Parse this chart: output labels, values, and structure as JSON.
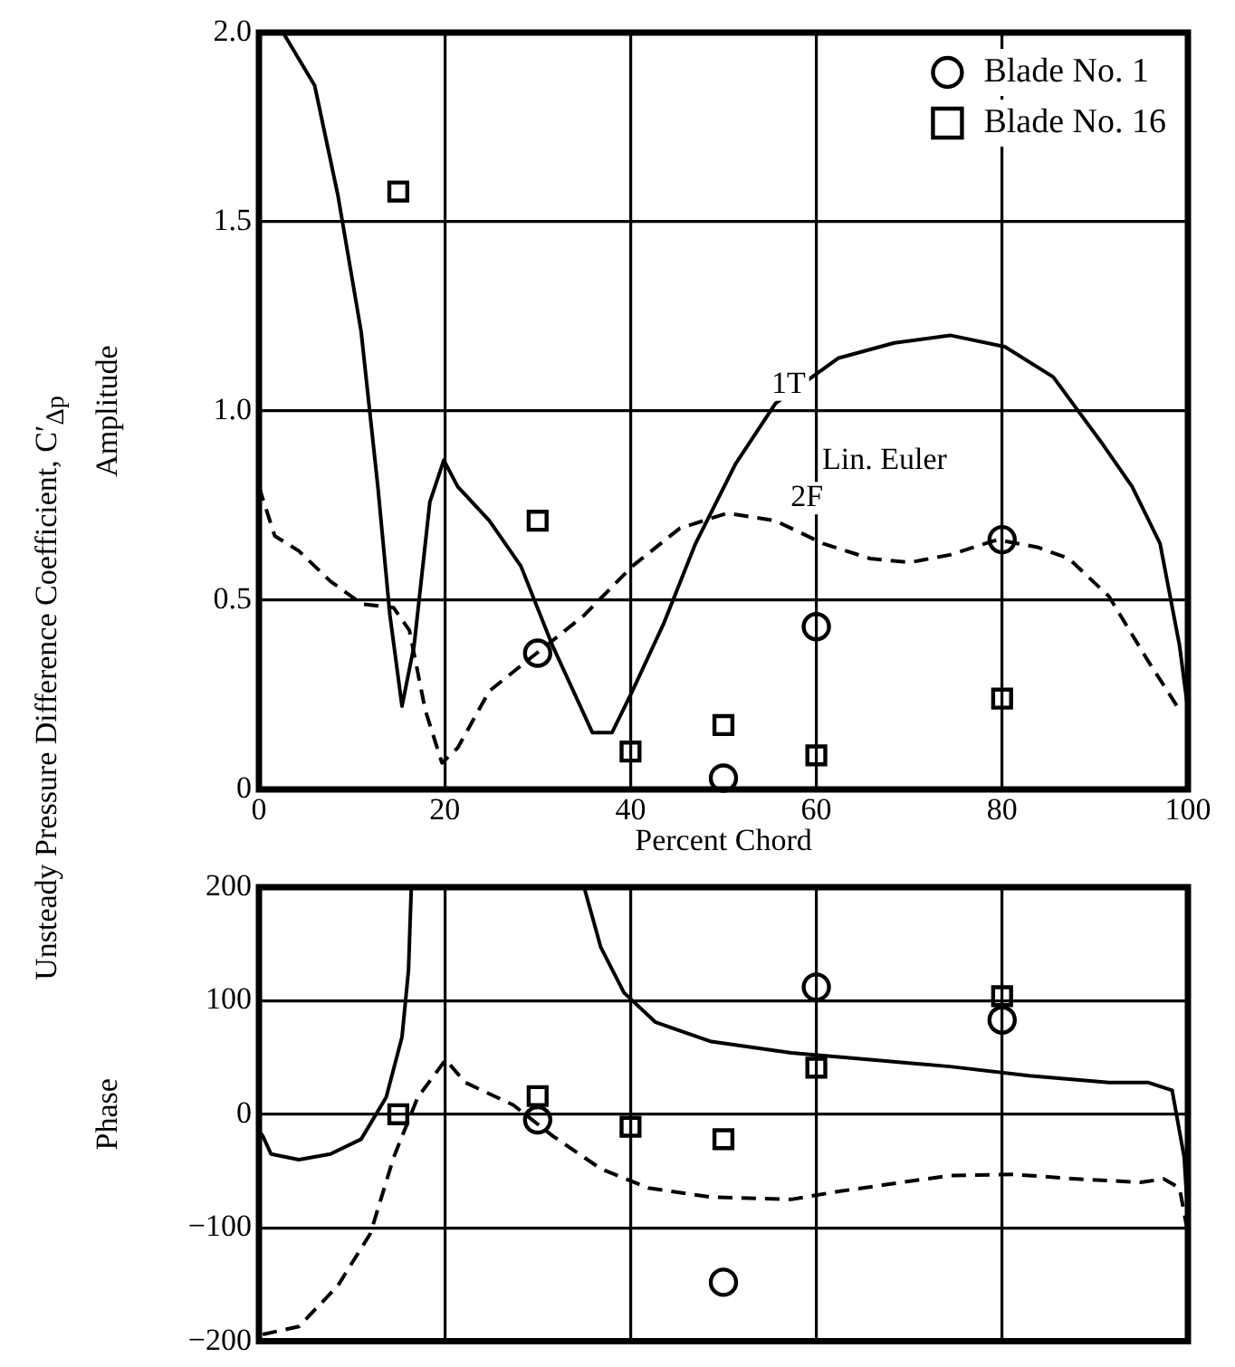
{
  "chart_data": [
    {
      "type": "line",
      "ylabel": "Amplitude",
      "xlabel": "Percent Chord",
      "xlim": [
        0,
        100
      ],
      "xticks": [
        0,
        20,
        40,
        60,
        80,
        100
      ],
      "ylim": [
        0,
        2
      ],
      "yticks": [
        0,
        {
          "value": 0.5,
          "label": "0.5"
        },
        {
          "value": 1,
          "label": "1.0"
        },
        {
          "value": 1.5,
          "label": "1.5"
        },
        {
          "value": 2,
          "label": "2.0"
        }
      ],
      "grid": true,
      "legend": "top right",
      "annotations": [
        "Unsteady Pressure Difference Coefficient, C′$_{Δp}$",
        {
          "text": "1T",
          "x": 57,
          "y": 1.07
        },
        "Lin. Euler",
        {
          "text": "2F",
          "x": 59,
          "y": 0.77
        }
      ],
      "series": [
        {
          "color": "#000000",
          "line_style": "solid",
          "marker": "none",
          "x": [
            2.6,
            6,
            8.5,
            11,
            12.8,
            14.1,
            15.4,
            16.7,
            18.4,
            19.9,
            21.4,
            24.8,
            28.2,
            31.6,
            35.9,
            38,
            40.2,
            43.6,
            47,
            51.3,
            55.6,
            62.4,
            68.4,
            74.4,
            80.3,
            85.5,
            90.6,
            94,
            97,
            99.1,
            100
          ],
          "values": [
            2.0,
            1.86,
            1.57,
            1.21,
            0.8,
            0.46,
            0.22,
            0.38,
            0.76,
            0.87,
            0.8,
            0.71,
            0.59,
            0.38,
            0.15,
            0.15,
            0.26,
            0.44,
            0.65,
            0.86,
            1.02,
            1.14,
            1.18,
            1.2,
            1.17,
            1.09,
            0.92,
            0.8,
            0.65,
            0.38,
            0.21
          ]
        },
        {
          "color": "#000000",
          "line_style": "dashed",
          "marker": "none",
          "x": [
            0,
            1.7,
            4.3,
            7.7,
            11.1,
            14.5,
            16.2,
            17.9,
            19.7,
            21.4,
            24.8,
            29.9,
            35,
            40.2,
            45.3,
            50.4,
            55.6,
            60.7,
            65.8,
            70.1,
            74.4,
            79.5,
            83.8,
            87.2,
            91.5,
            95.7,
            99.1
          ],
          "values": [
            0.8,
            0.67,
            0.63,
            0.55,
            0.49,
            0.48,
            0.42,
            0.21,
            0.07,
            0.11,
            0.26,
            0.36,
            0.46,
            0.59,
            0.69,
            0.73,
            0.71,
            0.65,
            0.61,
            0.6,
            0.62,
            0.66,
            0.64,
            0.61,
            0.51,
            0.34,
            0.21
          ]
        },
        {
          "type": "scatter",
          "name": "Blade No. 1",
          "color": "#000000",
          "marker": "circle",
          "x": [
            30,
            50,
            60,
            80
          ],
          "values": [
            0.36,
            0.03,
            0.43,
            0.66
          ]
        },
        {
          "type": "scatter",
          "name": "Blade No. 16",
          "color": "#000000",
          "marker": "square",
          "x": [
            15,
            30,
            40,
            50,
            60,
            80
          ],
          "values": [
            1.58,
            0.71,
            0.1,
            0.17,
            0.09,
            0.24
          ]
        }
      ]
    },
    {
      "type": "line",
      "ylabel": "Phase",
      "xlim": [
        0,
        100
      ],
      "xticks": [
        0,
        20,
        40,
        60,
        80,
        100
      ],
      "ylim": [
        -200,
        200
      ],
      "yticks": [
        {
          "value": -200,
          "label": "−200"
        },
        {
          "value": -100,
          "label": "−100"
        },
        0,
        100,
        200
      ],
      "grid": true,
      "tick_labels": "y",
      "series": [
        {
          "color": "#000000",
          "line_style": "solid",
          "marker": "none",
          "x": [
            0,
            0.4,
            1.3,
            4.3,
            7.7,
            11,
            13.7,
            15.4,
            16.1,
            16.4,
            35,
            36.8,
            39.3,
            42.7,
            48.7,
            57.3,
            65.8,
            74.4,
            82.9,
            91.5,
            95.7,
            98.3,
            99.6,
            100
          ],
          "values": [
            -15,
            -19,
            -35,
            -40,
            -35,
            -22,
            15,
            68,
            127,
            200,
            200,
            147,
            107,
            81,
            64,
            54,
            48,
            42,
            34,
            28,
            28,
            21,
            -38,
            -91
          ]
        },
        {
          "color": "#000000",
          "line_style": "dashed",
          "marker": "none",
          "x": [
            0.4,
            4.3,
            8.5,
            12,
            14.5,
            17.1,
            20.1,
            22.2,
            27.4,
            31.6,
            36.8,
            41.9,
            48.7,
            57.3,
            62.4,
            67.5,
            74.4,
            81.2,
            88,
            94.9,
            97.4,
            99.1,
            100
          ],
          "values": [
            -194,
            -187,
            -151,
            -105,
            -38,
            15,
            48,
            28,
            8,
            -19,
            -48,
            -65,
            -73,
            -75,
            -68,
            -62,
            -54,
            -53,
            -57,
            -60,
            -57,
            -65,
            -105
          ]
        },
        {
          "type": "scatter",
          "color": "#000000",
          "marker": "circle",
          "x": [
            30,
            50,
            60,
            80
          ],
          "values": [
            -5,
            -148,
            112,
            83
          ]
        },
        {
          "type": "scatter",
          "color": "#000000",
          "marker": "square",
          "x": [
            15,
            30,
            40,
            50,
            60,
            80
          ],
          "values": [
            0,
            16,
            -11,
            -22,
            41,
            104
          ]
        }
      ]
    }
  ]
}
